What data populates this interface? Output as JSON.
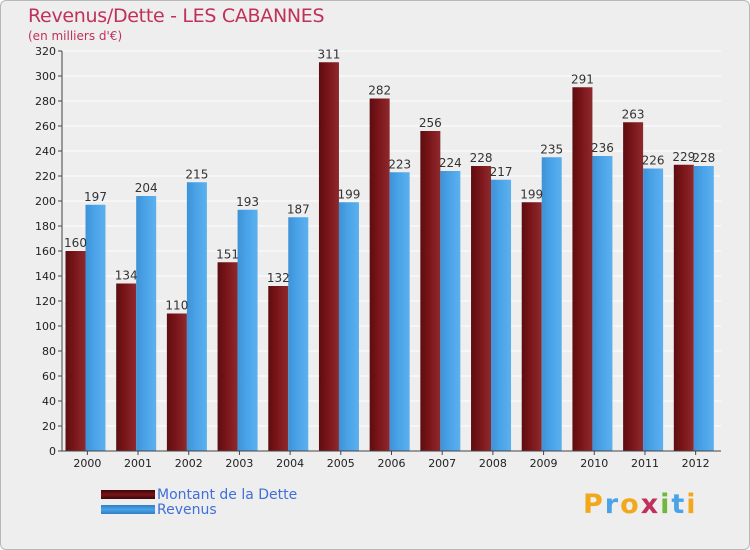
{
  "header": {
    "title": "Revenus/Dette - LES CABANNES",
    "subtitle": "(en milliers d'€)"
  },
  "colors": {
    "debt": "#7a1519",
    "revenue": "#4aa3e8",
    "title": "#c0305a",
    "legend_text": "#3f6fd8"
  },
  "chart_data": {
    "type": "bar",
    "title": "Revenus/Dette - LES CABANNES",
    "subtitle": "(en milliers d'€)",
    "xlabel": "",
    "ylabel": "",
    "categories": [
      "2000",
      "2001",
      "2002",
      "2003",
      "2004",
      "2005",
      "2006",
      "2007",
      "2008",
      "2009",
      "2010",
      "2011",
      "2012"
    ],
    "series": [
      {
        "name": "Montant de la Dette",
        "values": [
          160,
          134,
          110,
          151,
          132,
          311,
          282,
          256,
          228,
          199,
          291,
          263,
          229
        ]
      },
      {
        "name": "Revenus",
        "values": [
          197,
          204,
          215,
          193,
          187,
          199,
          223,
          224,
          217,
          235,
          236,
          226,
          228
        ]
      }
    ],
    "ylim": [
      0,
      320
    ],
    "yticks": [
      0,
      20,
      40,
      60,
      80,
      100,
      120,
      140,
      160,
      180,
      200,
      220,
      240,
      260,
      280,
      300,
      320
    ],
    "grid": true,
    "legend_position": "bottom-left"
  },
  "legend": {
    "items": [
      {
        "label": "Montant de la Dette"
      },
      {
        "label": "Revenus"
      }
    ]
  },
  "brand": {
    "letters": [
      "P",
      "r",
      "o",
      "x",
      "i",
      "t",
      "i"
    ],
    "letter_colors": [
      "#f2a81d",
      "#4aa3e8",
      "#f2a81d",
      "#c0305a",
      "#6fb83c",
      "#4aa3e8",
      "#f2a81d"
    ]
  }
}
